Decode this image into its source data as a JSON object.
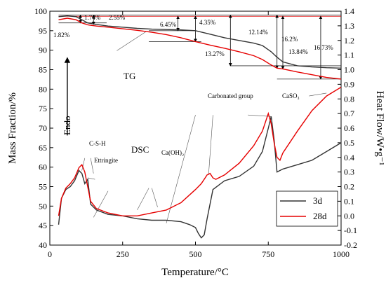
{
  "chart_data": {
    "type": "line",
    "xlabel": "Temperature/°C",
    "ylabel_left": "Mass Fraction/%",
    "ylabel_right": "Heat Flow/W•g⁻¹",
    "xlim": [
      0,
      1000
    ],
    "ylim_left": [
      40,
      100
    ],
    "ylim_right": [
      -0.2,
      1.4
    ],
    "x_ticks": [
      "0",
      "250",
      "500",
      "750",
      "1000"
    ],
    "y_left_ticks": [
      "40",
      "45",
      "50",
      "55",
      "60",
      "65",
      "70",
      "75",
      "80",
      "85",
      "90",
      "95",
      "100"
    ],
    "y_right_ticks": [
      "-0.2",
      "-0.1",
      "0.0",
      "0.1",
      "0.2",
      "0.3",
      "0.4",
      "0.5",
      "0.6",
      "0.7",
      "0.8",
      "0.9",
      "1.0",
      "1.1",
      "1.2",
      "1.3",
      "1.4"
    ],
    "legend_position": "bottom-right",
    "series": [
      {
        "name": "3d",
        "color": "#333333",
        "tg": {
          "x": [
            30,
            60,
            90,
            110,
            130,
            160,
            200,
            250,
            300,
            350,
            400,
            450,
            500,
            550,
            600,
            650,
            700,
            730,
            760,
            780,
            800,
            850,
            900,
            950,
            1000
          ],
          "y": [
            98.6,
            98.8,
            98.6,
            97.8,
            97.0,
            96.6,
            96.2,
            95.9,
            95.6,
            95.4,
            95.3,
            95.2,
            95.0,
            94.1,
            93.2,
            92.5,
            91.8,
            91.2,
            89.6,
            88.2,
            87.0,
            86.0,
            85.7,
            85.5,
            85.4
          ]
        },
        "dsc": {
          "x": [
            30,
            40,
            55,
            70,
            85,
            100,
            110,
            120,
            130,
            140,
            160,
            200,
            250,
            300,
            350,
            400,
            450,
            480,
            500,
            510,
            520,
            530,
            540,
            560,
            600,
            650,
            700,
            730,
            750,
            760,
            770,
            780,
            800,
            850,
            900,
            950,
            1000
          ],
          "y": [
            -0.06,
            0.12,
            0.18,
            0.2,
            0.24,
            0.31,
            0.29,
            0.22,
            0.25,
            0.08,
            0.04,
            0.01,
            -0.0,
            -0.02,
            -0.03,
            -0.03,
            -0.04,
            -0.06,
            -0.08,
            -0.12,
            -0.15,
            -0.13,
            -0.02,
            0.18,
            0.24,
            0.27,
            0.34,
            0.44,
            0.6,
            0.68,
            0.52,
            0.3,
            0.32,
            0.35,
            0.38,
            0.44,
            0.5
          ]
        }
      },
      {
        "name": "28d",
        "color": "#e60000",
        "tg": {
          "x": [
            30,
            60,
            90,
            110,
            130,
            160,
            200,
            250,
            300,
            350,
            400,
            450,
            500,
            550,
            600,
            650,
            700,
            730,
            760,
            780,
            800,
            850,
            900,
            950,
            1000
          ],
          "y": [
            97.8,
            98.2,
            97.8,
            97.0,
            96.5,
            96.2,
            95.9,
            95.5,
            95.1,
            94.6,
            94.0,
            93.2,
            92.2,
            91.3,
            90.5,
            89.6,
            88.6,
            87.6,
            86.2,
            85.4,
            85.2,
            84.4,
            83.7,
            83.0,
            82.6
          ]
        },
        "dsc": {
          "x": [
            30,
            40,
            55,
            70,
            85,
            100,
            110,
            120,
            140,
            160,
            200,
            250,
            300,
            350,
            400,
            450,
            500,
            520,
            540,
            550,
            560,
            570,
            600,
            650,
            700,
            730,
            750,
            760,
            770,
            780,
            790,
            800,
            850,
            900,
            950,
            1000
          ],
          "y": [
            0.0,
            0.12,
            0.19,
            0.22,
            0.26,
            0.33,
            0.35,
            0.3,
            0.1,
            0.05,
            0.02,
            0.0,
            0.0,
            0.02,
            0.04,
            0.09,
            0.18,
            0.22,
            0.28,
            0.29,
            0.26,
            0.25,
            0.28,
            0.36,
            0.48,
            0.58,
            0.7,
            0.63,
            0.5,
            0.4,
            0.38,
            0.43,
            0.58,
            0.72,
            0.82,
            0.88
          ]
        }
      }
    ],
    "mass_loss_labels": [
      "1.82%",
      "1.74%",
      "2.55%",
      "6.45%",
      "4.35%",
      "13.27%",
      "12.14%",
      "16.2%",
      "13.84%",
      "16.73%"
    ],
    "annotations": {
      "tg": "TG",
      "dsc": "DSC",
      "endo": "Endo",
      "csh": "C-S-H",
      "ettringite": "Ettringite",
      "caoh2": "Ca(OH)₂",
      "carbonated": "Carbonated group",
      "caso3": "CaSO₃"
    }
  }
}
